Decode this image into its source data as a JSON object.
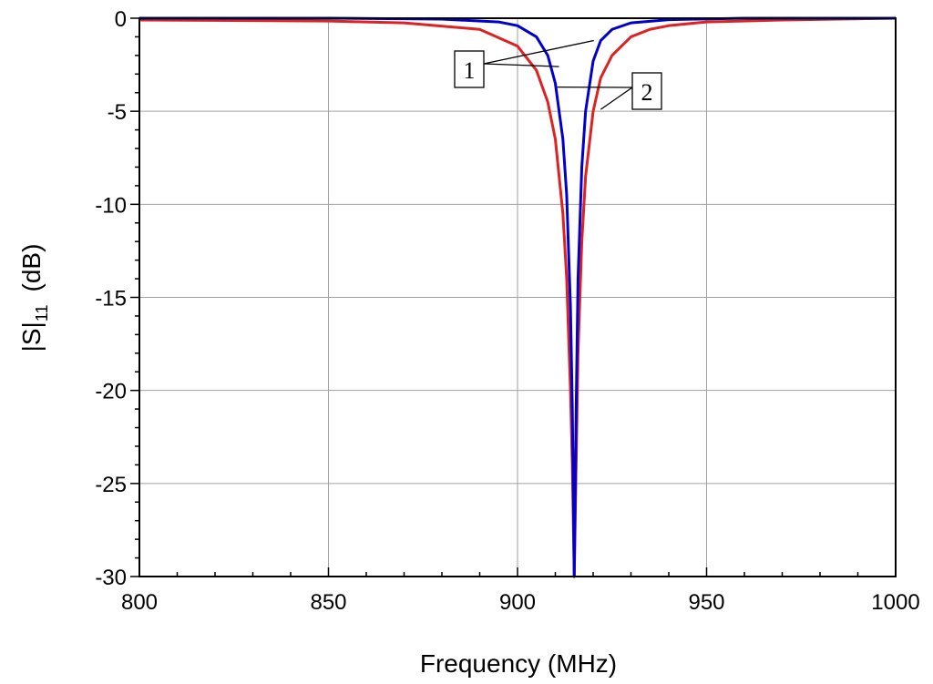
{
  "chart_data": {
    "type": "line",
    "title": "",
    "xlabel": "Frequency (MHz)",
    "ylabel": {
      "main": "|S|",
      "subscript": "11",
      "unit": "(dB)"
    },
    "xlim": [
      800,
      1000
    ],
    "ylim": [
      -30,
      0
    ],
    "xticks": [
      800,
      850,
      900,
      950,
      1000
    ],
    "yticks": [
      0,
      -5,
      -10,
      -15,
      -20,
      -25,
      -30
    ],
    "grid": true,
    "series": [
      {
        "color": "#0000cc",
        "x": [
          800,
          850,
          880,
          895,
          900,
          905,
          908,
          910,
          912,
          913,
          914,
          914.5,
          915,
          915.5,
          916,
          917,
          918,
          920,
          922,
          925,
          930,
          940,
          960,
          1000
        ],
        "y": [
          0,
          0,
          -0.05,
          -0.2,
          -0.4,
          -1.0,
          -2.0,
          -3.5,
          -6.5,
          -9.5,
          -15.5,
          -21,
          -30,
          -21,
          -14,
          -8,
          -5,
          -2.3,
          -1.2,
          -0.6,
          -0.25,
          -0.08,
          0,
          0
        ]
      },
      {
        "color": "#dd2222",
        "x": [
          800,
          850,
          870,
          890,
          900,
          905,
          908,
          910,
          912,
          913,
          914,
          914.5,
          915,
          915.5,
          916,
          917,
          918,
          920,
          922,
          925,
          930,
          935,
          940,
          950,
          970,
          1000
        ],
        "y": [
          -0.1,
          -0.15,
          -0.25,
          -0.6,
          -1.5,
          -2.8,
          -4.5,
          -6.5,
          -10.5,
          -14,
          -20,
          -24,
          -30,
          -24,
          -18,
          -12,
          -8.5,
          -5,
          -3.2,
          -2,
          -1,
          -0.6,
          -0.4,
          -0.2,
          -0.1,
          0
        ]
      }
    ],
    "annotations": [
      {
        "label": "1",
        "series": 0
      },
      {
        "label": "2",
        "series": 1
      }
    ]
  }
}
